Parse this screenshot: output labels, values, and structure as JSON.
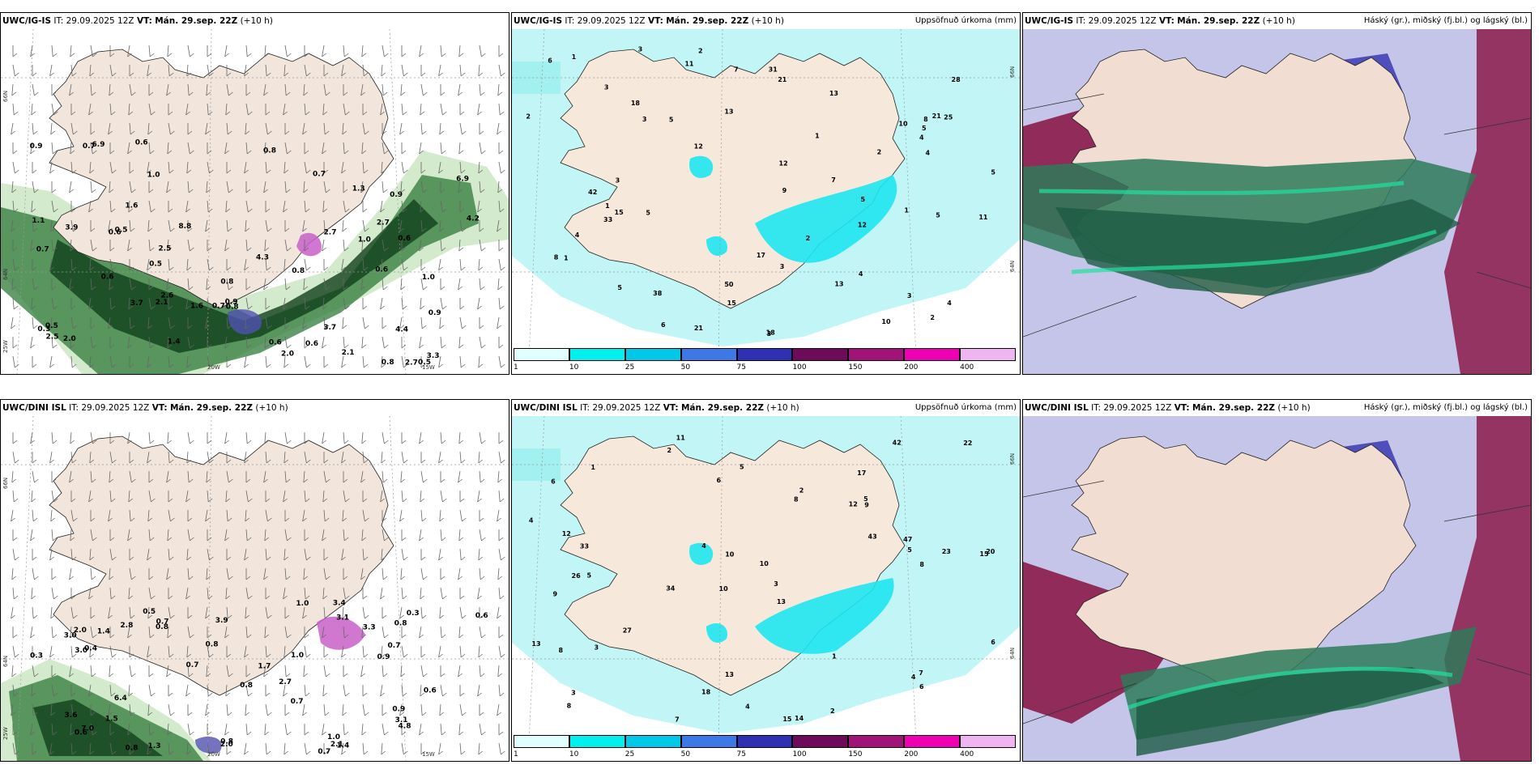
{
  "panels": [
    {
      "prefix": "UWC/IG-IS",
      "it": "IT: 29.09.2025 12Z",
      "vt_label": "VT:",
      "vt": "Mán. 29.sep. 22Z",
      "lead": "(+10 h)",
      "right": ""
    },
    {
      "prefix": "UWC/IG-IS",
      "it": "IT: 29.09.2025 12Z",
      "vt_label": "VT:",
      "vt": "Mán. 29.sep. 22Z",
      "lead": "(+10 h)",
      "right": "Uppsöfnuð úrkoma (mm)"
    },
    {
      "prefix": "UWC/IG-IS",
      "it": "IT: 29.09.2025 12Z",
      "vt_label": "VT:",
      "vt": "Mán. 29.sep. 22Z",
      "lead": "(+10 h)",
      "right": "Háský (gr.), miðský (fj.bl.) og lágský (bl.)"
    },
    {
      "prefix": "UWC/DINI ISL",
      "it": "IT: 29.09.2025 12Z",
      "vt_label": "VT:",
      "vt": "Mán. 29.sep. 22Z",
      "lead": "(+10 h)",
      "right": ""
    },
    {
      "prefix": "UWC/DINI ISL",
      "it": "IT: 29.09.2025 12Z",
      "vt_label": "VT:",
      "vt": "Mán. 29.sep. 22Z",
      "lead": "(+10 h)",
      "right": "Uppsöfnuð úrkoma (mm)"
    },
    {
      "prefix": "UWC/DINI ISL",
      "it": "IT: 29.09.2025 12Z",
      "vt_label": "VT:",
      "vt": "Mán. 29.sep. 22Z",
      "lead": "(+10 h)",
      "right": "Háský (gr.), miðský (fj.bl.) og lágský (bl.)"
    }
  ],
  "colorbar": {
    "ticks": [
      "1",
      "10",
      "25",
      "50",
      "75",
      "100",
      "150",
      "200",
      "400"
    ],
    "colors": [
      "#e0ffff",
      "#00f0f0",
      "#00c8e8",
      "#3c78e6",
      "#3030b4",
      "#6e0a5a",
      "#a0147a",
      "#f000b4",
      "#f0b4f0"
    ]
  },
  "axis_labels": {
    "lat66": "66N",
    "lat64": "64N",
    "lat65": "65N",
    "lon25": "25W",
    "lon20": "20W",
    "lon15": "15W"
  },
  "wind_panel_top": [
    "0.8",
    "0.6",
    "0.7",
    "0.6",
    "0.5",
    "1.0",
    "0.7",
    "0.5",
    "2.1",
    "1.0",
    "0.6",
    "0.8",
    "0.9",
    "0.8",
    "2.5",
    "3.7",
    "4.3",
    "4.2",
    "6.9",
    "8.8",
    "2.7",
    "0.5",
    "0.6",
    "3.7",
    "4.4",
    "2.7",
    "0.6",
    "0.5",
    "0.9",
    "0.3",
    "2.6",
    "1.6",
    "2.0",
    "0.9",
    "1.3",
    "1.1",
    "3.9",
    "6.9",
    "0.6",
    "1.4",
    "0.7",
    "3.3",
    "1.0",
    "2.1",
    "0.8",
    "2.5",
    "0.9",
    "1.6",
    "0.6",
    "0.7",
    "2.0",
    "2.7",
    "0.8"
  ],
  "wind_panel_bottom": [
    "0.5",
    "0.7",
    "2.1",
    "3.0",
    "0.8",
    "0.6",
    "4.8",
    "0.8",
    "3.1",
    "3.3",
    "7.0",
    "3.4",
    "6.4",
    "3.0",
    "0.8",
    "2.7",
    "0.9",
    "0.7",
    "2.0",
    "0.8",
    "1.0",
    "0.8",
    "0.7",
    "1.0",
    "2.8",
    "0.6",
    "0.3",
    "3.9",
    "0.7",
    "2.0",
    "1.4",
    "1.7",
    "3.1",
    "0.9",
    "3.6",
    "1.3",
    "0.7",
    "1.4",
    "1.5",
    "0.3",
    "1.0",
    "0.6",
    "0.8",
    "0.4"
  ],
  "precip_top": [
    "11",
    "13",
    "10",
    "13",
    "18",
    "6",
    "12",
    "4",
    "5",
    "7",
    "2",
    "3",
    "1",
    "5",
    "2",
    "1",
    "8",
    "4",
    "3",
    "5",
    "2",
    "13",
    "15",
    "21",
    "12",
    "5",
    "11",
    "10",
    "50",
    "21",
    "42",
    "28",
    "38",
    "33",
    "17",
    "25",
    "15",
    "18",
    "8",
    "3",
    "5",
    "4",
    "9",
    "5",
    "12",
    "21",
    "31",
    "3",
    "2",
    "1",
    "4",
    "4",
    "3",
    "2",
    "1",
    "7",
    "3",
    "1",
    "5",
    "3",
    "6"
  ],
  "precip_bottom": [
    "11",
    "17",
    "15",
    "10",
    "13",
    "5",
    "6",
    "12",
    "9",
    "8",
    "10",
    "8",
    "2",
    "34",
    "15",
    "14",
    "13",
    "42",
    "43",
    "27",
    "33",
    "26",
    "20",
    "23",
    "13",
    "12",
    "10",
    "5",
    "7",
    "8",
    "4",
    "2",
    "3",
    "4",
    "1",
    "6",
    "47",
    "18",
    "22",
    "5",
    "3",
    "7",
    "2",
    "1",
    "4",
    "9",
    "6",
    "5",
    "4",
    "3",
    "6",
    "8"
  ]
}
